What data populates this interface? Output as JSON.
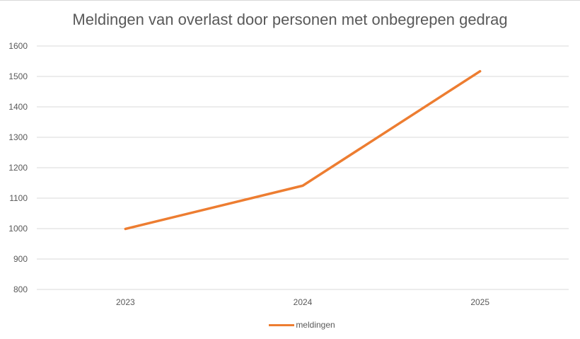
{
  "colors": {
    "series": "#ed7d31",
    "grid": "#d9d9d9",
    "text": "#595959"
  },
  "chart_data": {
    "type": "line",
    "title": "Meldingen van overlast door personen met onbegrepen gedrag",
    "xlabel": "",
    "ylabel": "",
    "categories": [
      "2023",
      "2024",
      "2025"
    ],
    "series": [
      {
        "name": "meldingen",
        "values": [
          999,
          1141,
          1517
        ]
      }
    ],
    "ylim": [
      800,
      1600
    ],
    "yticks": [
      "800",
      "900",
      "1000",
      "1100",
      "1200",
      "1300",
      "1400",
      "1500",
      "1600"
    ],
    "grid": true,
    "legend_position": "bottom"
  }
}
